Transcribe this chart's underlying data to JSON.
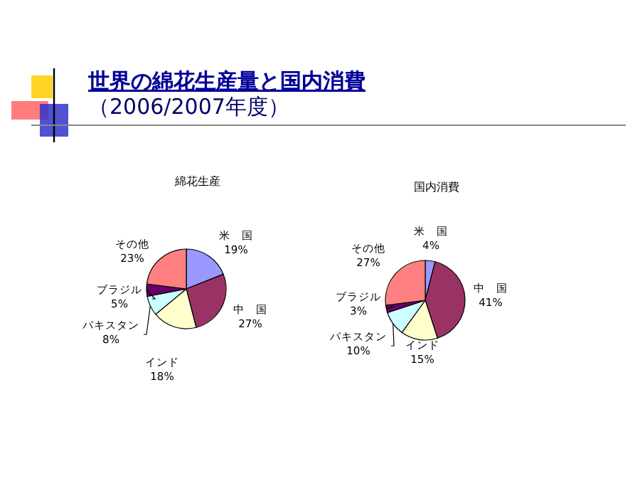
{
  "chart_data": [
    {
      "type": "pie",
      "title": "綿花生産",
      "annotations": [
        "世界の綿花生産量と国内消費",
        "（2006/2007年度）"
      ],
      "categories": [
        "米　国",
        "中　国",
        "インド",
        "パキスタン",
        "ブラジル",
        "その他"
      ],
      "values": [
        19,
        27,
        18,
        8,
        5,
        23
      ],
      "value_labels": [
        "19%",
        "27%",
        "18%",
        "8%",
        "5%",
        "23%"
      ],
      "colors": [
        "#9999ff",
        "#993366",
        "#ffffcc",
        "#ccffff",
        "#660066",
        "#ff8080"
      ]
    },
    {
      "type": "pie",
      "title": "国内消費",
      "categories": [
        "米　国",
        "中　国",
        "インド",
        "パキスタン",
        "ブラジル",
        "その他"
      ],
      "values": [
        4,
        41,
        15,
        10,
        3,
        27
      ],
      "value_labels": [
        "4%",
        "41%",
        "15%",
        "10%",
        "3%",
        "27%"
      ],
      "colors": [
        "#9999ff",
        "#993366",
        "#ffffcc",
        "#ccffff",
        "#660066",
        "#ff8080"
      ]
    }
  ]
}
